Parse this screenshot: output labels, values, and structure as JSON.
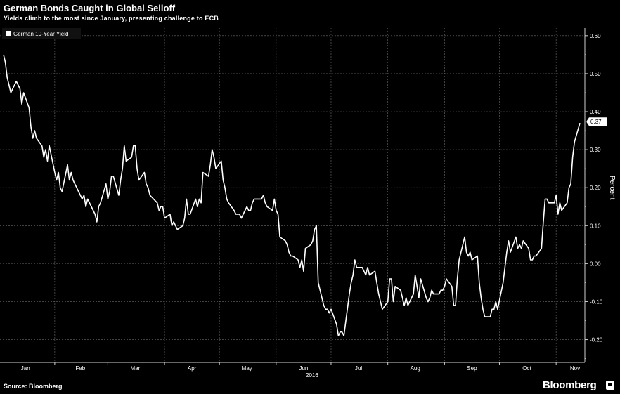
{
  "header": {
    "title": "German Bonds Caught in Global Selloff",
    "subtitle": "Yields climb to the most since January, presenting challenge to ECB"
  },
  "footer": {
    "source": "Source: Bloomberg",
    "brand": "Bloomberg"
  },
  "chart_data": {
    "type": "line",
    "title": "German Bonds Caught in Global Selloff",
    "subtitle": "Yields climb to the most since January, presenting challenge to ECB",
    "xlabel": "2016",
    "ylabel": "Percent",
    "ylim": [
      -0.26,
      0.62
    ],
    "yticks": [
      0.6,
      0.5,
      0.4,
      0.3,
      0.2,
      0.1,
      0.0,
      -0.1,
      -0.2
    ],
    "ytick_labels": [
      "0.60",
      "0.50",
      "0.40",
      "0.30",
      "0.20",
      "0.10",
      "0.00",
      "-0.10",
      "-0.20"
    ],
    "x_tick_labels": [
      "Jan",
      "Feb",
      "Mar",
      "Apr",
      "May",
      "Jun",
      "Jul",
      "Aug",
      "Sep",
      "Oct",
      "Nov"
    ],
    "x_year_label": "2016",
    "grid": true,
    "legend": "top-left",
    "last_value_label": "0.37",
    "series": [
      {
        "name": "German 10-Year Yield",
        "color": "#ffffff",
        "points": [
          [
            "2016-01-04",
            0.55
          ],
          [
            "2016-01-05",
            0.53
          ],
          [
            "2016-01-06",
            0.49
          ],
          [
            "2016-01-07",
            0.47
          ],
          [
            "2016-01-08",
            0.45
          ],
          [
            "2016-01-11",
            0.48
          ],
          [
            "2016-01-12",
            0.47
          ],
          [
            "2016-01-13",
            0.46
          ],
          [
            "2016-01-14",
            0.42
          ],
          [
            "2016-01-15",
            0.45
          ],
          [
            "2016-01-18",
            0.41
          ],
          [
            "2016-01-19",
            0.36
          ],
          [
            "2016-01-20",
            0.33
          ],
          [
            "2016-01-21",
            0.35
          ],
          [
            "2016-01-22",
            0.33
          ],
          [
            "2016-01-25",
            0.31
          ],
          [
            "2016-01-26",
            0.28
          ],
          [
            "2016-01-27",
            0.3
          ],
          [
            "2016-01-28",
            0.27
          ],
          [
            "2016-01-29",
            0.31
          ],
          [
            "2016-02-01",
            0.24
          ],
          [
            "2016-02-02",
            0.22
          ],
          [
            "2016-02-03",
            0.24
          ],
          [
            "2016-02-04",
            0.2
          ],
          [
            "2016-02-05",
            0.19
          ],
          [
            "2016-02-08",
            0.26
          ],
          [
            "2016-02-09",
            0.22
          ],
          [
            "2016-02-10",
            0.24
          ],
          [
            "2016-02-11",
            0.22
          ],
          [
            "2016-02-12",
            0.21
          ],
          [
            "2016-02-15",
            0.18
          ],
          [
            "2016-02-16",
            0.17
          ],
          [
            "2016-02-17",
            0.18
          ],
          [
            "2016-02-18",
            0.15
          ],
          [
            "2016-02-19",
            0.17
          ],
          [
            "2016-02-22",
            0.14
          ],
          [
            "2016-02-23",
            0.13
          ],
          [
            "2016-02-24",
            0.11
          ],
          [
            "2016-02-25",
            0.15
          ],
          [
            "2016-02-26",
            0.16
          ],
          [
            "2016-02-29",
            0.21
          ],
          [
            "2016-03-01",
            0.17
          ],
          [
            "2016-03-02",
            0.19
          ],
          [
            "2016-03-03",
            0.23
          ],
          [
            "2016-03-04",
            0.23
          ],
          [
            "2016-03-07",
            0.18
          ],
          [
            "2016-03-08",
            0.22
          ],
          [
            "2016-03-09",
            0.25
          ],
          [
            "2016-03-10",
            0.31
          ],
          [
            "2016-03-11",
            0.27
          ],
          [
            "2016-03-14",
            0.28
          ],
          [
            "2016-03-15",
            0.31
          ],
          [
            "2016-03-16",
            0.31
          ],
          [
            "2016-03-17",
            0.25
          ],
          [
            "2016-03-18",
            0.22
          ],
          [
            "2016-03-21",
            0.24
          ],
          [
            "2016-03-22",
            0.21
          ],
          [
            "2016-03-23",
            0.2
          ],
          [
            "2016-03-24",
            0.18
          ],
          [
            "2016-03-28",
            0.16
          ],
          [
            "2016-03-29",
            0.14
          ],
          [
            "2016-03-30",
            0.15
          ],
          [
            "2016-03-31",
            0.15
          ],
          [
            "2016-04-01",
            0.12
          ],
          [
            "2016-04-04",
            0.13
          ],
          [
            "2016-04-05",
            0.1
          ],
          [
            "2016-04-06",
            0.11
          ],
          [
            "2016-04-07",
            0.1
          ],
          [
            "2016-04-08",
            0.09
          ],
          [
            "2016-04-11",
            0.1
          ],
          [
            "2016-04-12",
            0.12
          ],
          [
            "2016-04-13",
            0.17
          ],
          [
            "2016-04-14",
            0.13
          ],
          [
            "2016-04-15",
            0.13
          ],
          [
            "2016-04-18",
            0.17
          ],
          [
            "2016-04-19",
            0.15
          ],
          [
            "2016-04-20",
            0.17
          ],
          [
            "2016-04-21",
            0.16
          ],
          [
            "2016-04-22",
            0.24
          ],
          [
            "2016-04-25",
            0.23
          ],
          [
            "2016-04-26",
            0.26
          ],
          [
            "2016-04-27",
            0.3
          ],
          [
            "2016-04-28",
            0.28
          ],
          [
            "2016-04-29",
            0.25
          ],
          [
            "2016-05-02",
            0.27
          ],
          [
            "2016-05-03",
            0.22
          ],
          [
            "2016-05-04",
            0.2
          ],
          [
            "2016-05-05",
            0.17
          ],
          [
            "2016-05-06",
            0.16
          ],
          [
            "2016-05-09",
            0.14
          ],
          [
            "2016-05-10",
            0.13
          ],
          [
            "2016-05-11",
            0.13
          ],
          [
            "2016-05-12",
            0.13
          ],
          [
            "2016-05-13",
            0.12
          ],
          [
            "2016-05-16",
            0.15
          ],
          [
            "2016-05-17",
            0.14
          ],
          [
            "2016-05-18",
            0.14
          ],
          [
            "2016-05-19",
            0.16
          ],
          [
            "2016-05-20",
            0.17
          ],
          [
            "2016-05-23",
            0.17
          ],
          [
            "2016-05-24",
            0.17
          ],
          [
            "2016-05-25",
            0.18
          ],
          [
            "2016-05-26",
            0.16
          ],
          [
            "2016-05-27",
            0.15
          ],
          [
            "2016-05-30",
            0.14
          ],
          [
            "2016-05-31",
            0.17
          ],
          [
            "2016-06-01",
            0.14
          ],
          [
            "2016-06-02",
            0.13
          ],
          [
            "2016-06-03",
            0.07
          ],
          [
            "2016-06-06",
            0.06
          ],
          [
            "2016-06-07",
            0.05
          ],
          [
            "2016-06-08",
            0.03
          ],
          [
            "2016-06-09",
            0.02
          ],
          [
            "2016-06-10",
            0.02
          ],
          [
            "2016-06-13",
            0.01
          ],
          [
            "2016-06-14",
            -0.01
          ],
          [
            "2016-06-15",
            0.01
          ],
          [
            "2016-06-16",
            -0.02
          ],
          [
            "2016-06-17",
            0.04
          ],
          [
            "2016-06-20",
            0.05
          ],
          [
            "2016-06-21",
            0.06
          ],
          [
            "2016-06-22",
            0.09
          ],
          [
            "2016-06-23",
            0.1
          ],
          [
            "2016-06-24",
            -0.05
          ],
          [
            "2016-06-27",
            -0.11
          ],
          [
            "2016-06-28",
            -0.12
          ],
          [
            "2016-06-29",
            -0.12
          ],
          [
            "2016-06-30",
            -0.13
          ],
          [
            "2016-07-01",
            -0.12
          ],
          [
            "2016-07-04",
            -0.16
          ],
          [
            "2016-07-05",
            -0.19
          ],
          [
            "2016-07-06",
            -0.18
          ],
          [
            "2016-07-07",
            -0.18
          ],
          [
            "2016-07-08",
            -0.19
          ],
          [
            "2016-07-11",
            -0.08
          ],
          [
            "2016-07-12",
            -0.05
          ],
          [
            "2016-07-13",
            -0.03
          ],
          [
            "2016-07-14",
            0.01
          ],
          [
            "2016-07-15",
            -0.01
          ],
          [
            "2016-07-18",
            -0.01
          ],
          [
            "2016-07-19",
            -0.02
          ],
          [
            "2016-07-20",
            -0.03
          ],
          [
            "2016-07-21",
            -0.01
          ],
          [
            "2016-07-22",
            -0.03
          ],
          [
            "2016-07-25",
            -0.02
          ],
          [
            "2016-07-26",
            -0.05
          ],
          [
            "2016-07-27",
            -0.08
          ],
          [
            "2016-07-28",
            -0.1
          ],
          [
            "2016-07-29",
            -0.12
          ],
          [
            "2016-08-01",
            -0.1
          ],
          [
            "2016-08-02",
            -0.04
          ],
          [
            "2016-08-03",
            -0.04
          ],
          [
            "2016-08-04",
            -0.1
          ],
          [
            "2016-08-05",
            -0.06
          ],
          [
            "2016-08-08",
            -0.07
          ],
          [
            "2016-08-09",
            -0.09
          ],
          [
            "2016-08-10",
            -0.11
          ],
          [
            "2016-08-11",
            -0.09
          ],
          [
            "2016-08-12",
            -0.11
          ],
          [
            "2016-08-15",
            -0.08
          ],
          [
            "2016-08-16",
            -0.03
          ],
          [
            "2016-08-17",
            -0.06
          ],
          [
            "2016-08-18",
            -0.09
          ],
          [
            "2016-08-19",
            -0.04
          ],
          [
            "2016-08-22",
            -0.09
          ],
          [
            "2016-08-23",
            -0.1
          ],
          [
            "2016-08-24",
            -0.09
          ],
          [
            "2016-08-25",
            -0.07
          ],
          [
            "2016-08-26",
            -0.08
          ],
          [
            "2016-08-29",
            -0.08
          ],
          [
            "2016-08-30",
            -0.07
          ],
          [
            "2016-08-31",
            -0.07
          ],
          [
            "2016-09-01",
            -0.06
          ],
          [
            "2016-09-02",
            -0.04
          ],
          [
            "2016-09-05",
            -0.06
          ],
          [
            "2016-09-06",
            -0.11
          ],
          [
            "2016-09-07",
            -0.11
          ],
          [
            "2016-09-08",
            -0.04
          ],
          [
            "2016-09-09",
            0.01
          ],
          [
            "2016-09-12",
            0.07
          ],
          [
            "2016-09-13",
            0.03
          ],
          [
            "2016-09-14",
            0.02
          ],
          [
            "2016-09-15",
            0.03
          ],
          [
            "2016-09-16",
            0.01
          ],
          [
            "2016-09-19",
            0.02
          ],
          [
            "2016-09-20",
            -0.05
          ],
          [
            "2016-09-21",
            -0.09
          ],
          [
            "2016-09-22",
            -0.12
          ],
          [
            "2016-09-23",
            -0.14
          ],
          [
            "2016-09-26",
            -0.14
          ],
          [
            "2016-09-27",
            -0.12
          ],
          [
            "2016-09-28",
            -0.12
          ],
          [
            "2016-09-29",
            -0.1
          ],
          [
            "2016-09-30",
            -0.12
          ],
          [
            "2016-10-03",
            -0.05
          ],
          [
            "2016-10-04",
            -0.01
          ],
          [
            "2016-10-05",
            0.03
          ],
          [
            "2016-10-06",
            0.06
          ],
          [
            "2016-10-07",
            0.03
          ],
          [
            "2016-10-10",
            0.07
          ],
          [
            "2016-10-11",
            0.04
          ],
          [
            "2016-10-12",
            0.05
          ],
          [
            "2016-10-13",
            0.04
          ],
          [
            "2016-10-14",
            0.06
          ],
          [
            "2016-10-17",
            0.04
          ],
          [
            "2016-10-18",
            0.01
          ],
          [
            "2016-10-19",
            0.01
          ],
          [
            "2016-10-20",
            0.02
          ],
          [
            "2016-10-21",
            0.02
          ],
          [
            "2016-10-24",
            0.04
          ],
          [
            "2016-10-25",
            0.11
          ],
          [
            "2016-10-26",
            0.17
          ],
          [
            "2016-10-27",
            0.17
          ],
          [
            "2016-10-28",
            0.16
          ],
          [
            "2016-10-31",
            0.16
          ],
          [
            "2016-11-01",
            0.18
          ],
          [
            "2016-11-02",
            0.13
          ],
          [
            "2016-11-03",
            0.16
          ],
          [
            "2016-11-04",
            0.14
          ],
          [
            "2016-11-07",
            0.16
          ],
          [
            "2016-11-08",
            0.2
          ],
          [
            "2016-11-09",
            0.21
          ],
          [
            "2016-11-10",
            0.28
          ],
          [
            "2016-11-11",
            0.32
          ],
          [
            "2016-11-14",
            0.37
          ]
        ]
      }
    ]
  }
}
